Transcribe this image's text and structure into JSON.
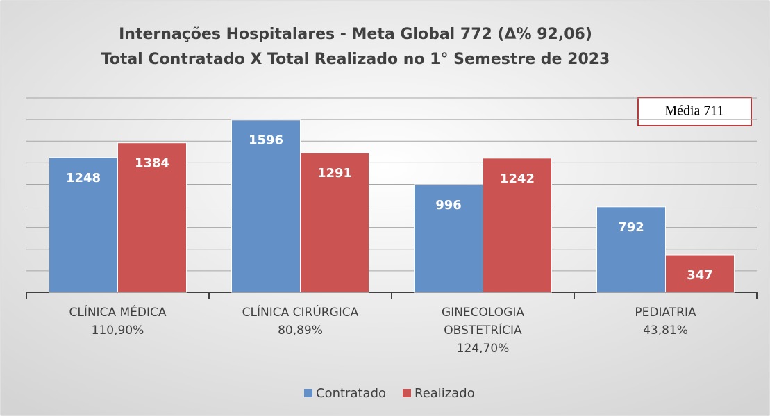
{
  "chart_data": {
    "type": "bar",
    "title": "Internações Hospitalares - Meta Global 772 (Δ% 92,06)",
    "subtitle": "Total Contratado X Total Realizado no 1° Semestre de 2023",
    "annotation": "Média 711",
    "categories": [
      "CLÍNICA MÉDICA",
      "CLÍNICA CIRÚRGICA",
      "GINECOLOGIA OBSTETRÍCIA",
      "PEDIATRIA"
    ],
    "category_percentages": [
      "110,90%",
      "80,89%",
      "124,70%",
      "43,81%"
    ],
    "series": [
      {
        "name": "Contratado",
        "color": "#6490c8",
        "values": [
          1248,
          1596,
          996,
          792
        ]
      },
      {
        "name": "Realizado",
        "color": "#cb5452",
        "values": [
          1384,
          1291,
          1242,
          347
        ]
      }
    ],
    "ylim": [
      0,
      1800
    ],
    "yticks": [
      0,
      200,
      400,
      600,
      800,
      1000,
      1200,
      1400,
      1600,
      1800
    ],
    "grid": true,
    "legend": "bottom"
  }
}
